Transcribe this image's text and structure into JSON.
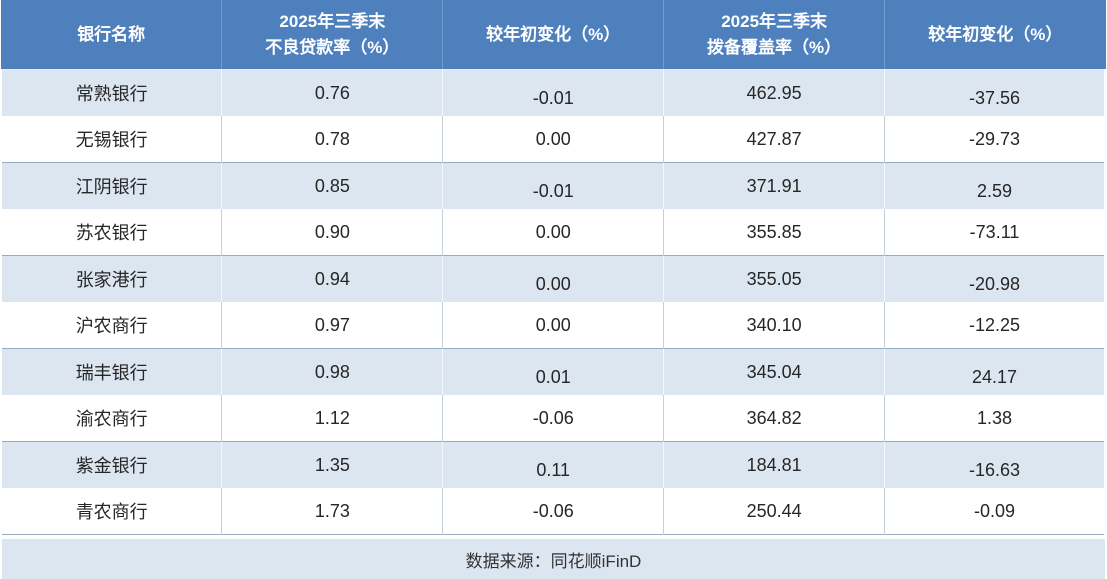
{
  "colors": {
    "header_bg": "#4f80be",
    "header_text": "#ffffff",
    "alt_row_bg": "#dce6f1",
    "row_bg": "#ffffff",
    "body_text": "#262626",
    "strong_border": "#96abc4",
    "light_border": "#c5d0dd"
  },
  "chart_data": {
    "type": "table",
    "columns": [
      "银行名称",
      "2025年三季末\n不良贷款率（%）",
      "较年初变化（%）",
      "2025年三季末\n拨备覆盖率（%）",
      "较年初变化（%）"
    ],
    "rows": [
      [
        "常熟银行",
        "0.76",
        "-0.01",
        "462.95",
        "-37.56"
      ],
      [
        "无锡银行",
        "0.78",
        "0.00",
        "427.87",
        "-29.73"
      ],
      [
        "江阴银行",
        "0.85",
        "-0.01",
        "371.91",
        "2.59"
      ],
      [
        "苏农银行",
        "0.90",
        "0.00",
        "355.85",
        "-73.11"
      ],
      [
        "张家港行",
        "0.94",
        "0.00",
        "355.05",
        "-20.98"
      ],
      [
        "沪农商行",
        "0.97",
        "0.00",
        "340.10",
        "-12.25"
      ],
      [
        "瑞丰银行",
        "0.98",
        "0.01",
        "345.04",
        "24.17"
      ],
      [
        "渝农商行",
        "1.12",
        "-0.06",
        "364.82",
        "1.38"
      ],
      [
        "紫金银行",
        "1.35",
        "0.11",
        "184.81",
        "-16.63"
      ],
      [
        "青农商行",
        "1.73",
        "-0.06",
        "250.44",
        "-0.09"
      ]
    ],
    "source_note": "数据来源：同花顺iFinD",
    "legend_position": "none",
    "grid": "on"
  }
}
